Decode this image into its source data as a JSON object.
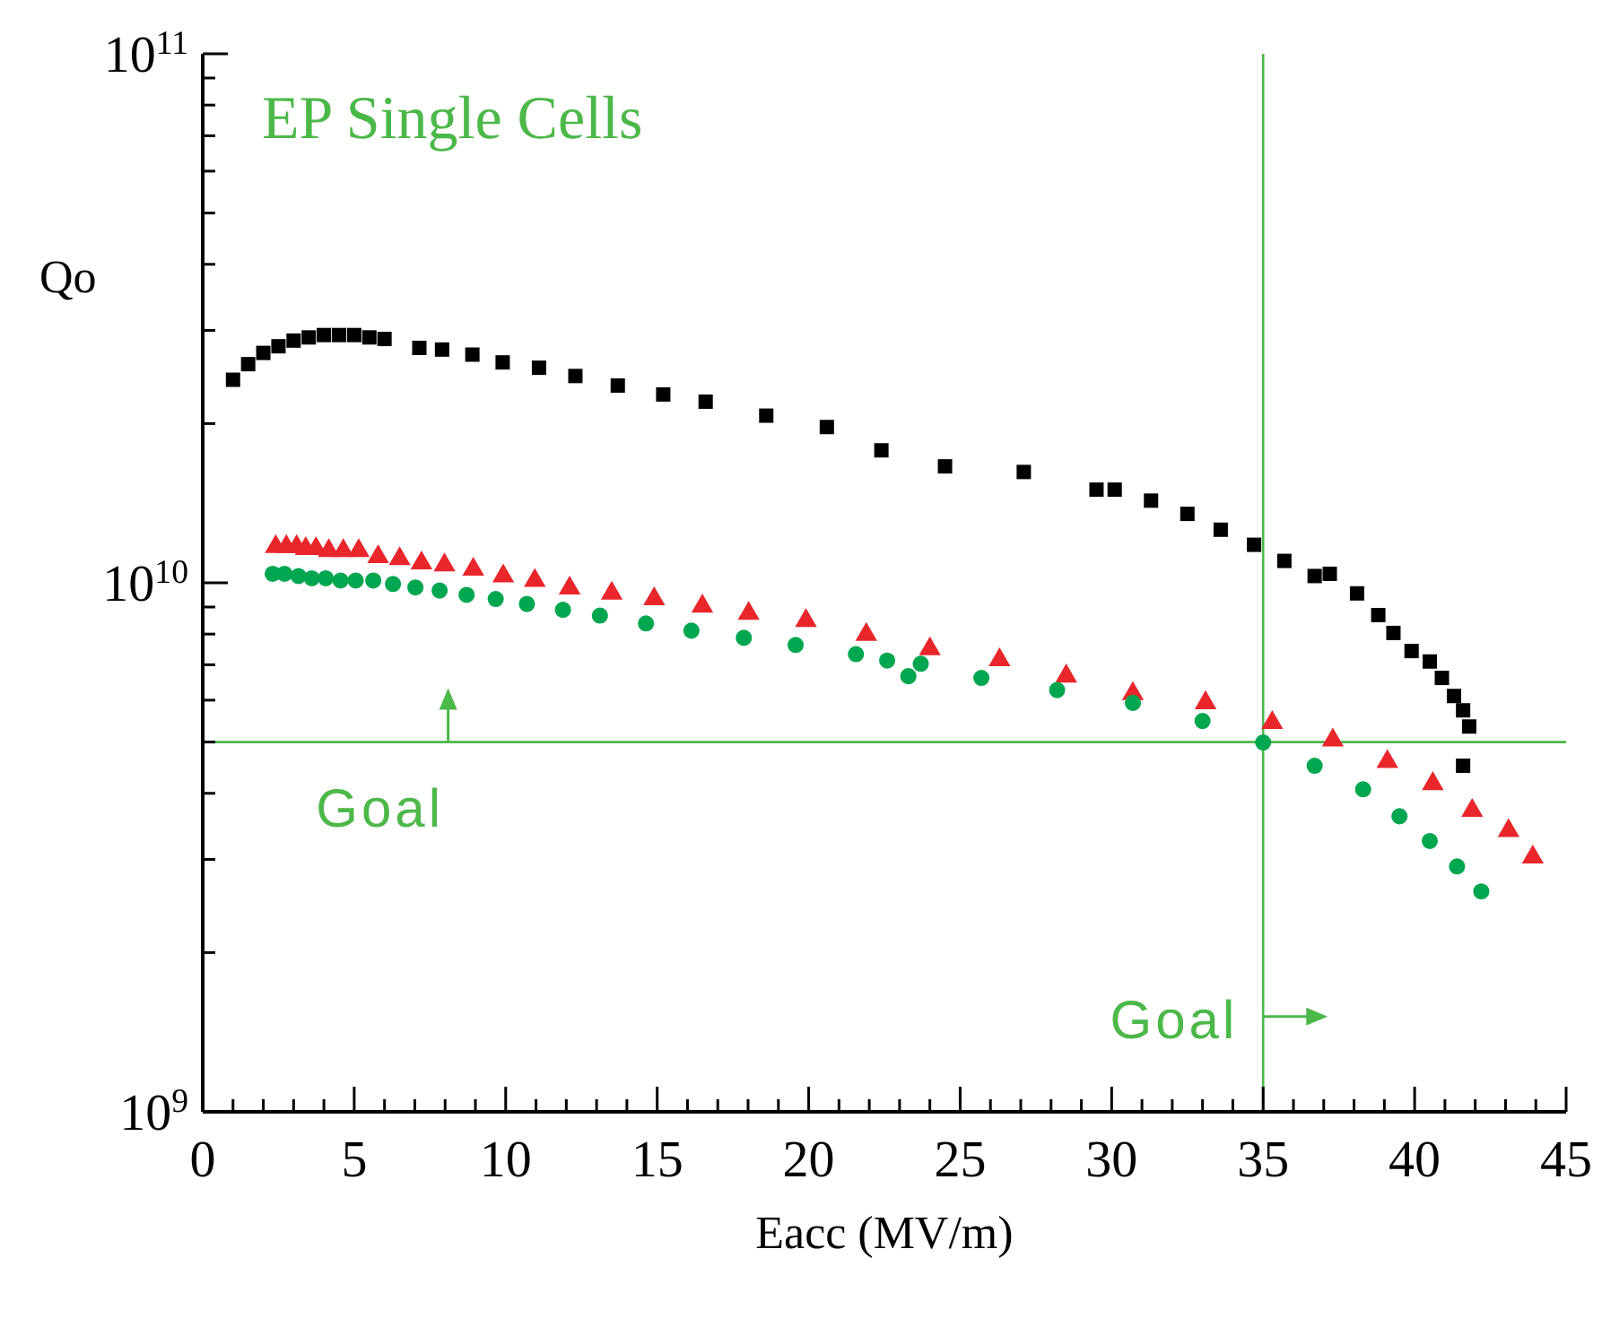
{
  "chart_data": {
    "type": "scatter",
    "title": "EP Single Cells",
    "xlabel": "Eacc (MV/m)",
    "ylabel": "Qo",
    "log": "y",
    "xlim": [
      0,
      45
    ],
    "ylim": [
      1000000000,
      100000000000
    ],
    "xticks": [
      0,
      {
        "value": 1,
        "label": null
      },
      {
        "value": 2,
        "label": null
      },
      {
        "value": 3,
        "label": null
      },
      {
        "value": 4,
        "label": null
      },
      5,
      {
        "value": 6,
        "label": null
      },
      {
        "value": 7,
        "label": null
      },
      {
        "value": 8,
        "label": null
      },
      {
        "value": 9,
        "label": null
      },
      10,
      {
        "value": 11,
        "label": null
      },
      {
        "value": 12,
        "label": null
      },
      {
        "value": 13,
        "label": null
      },
      {
        "value": 14,
        "label": null
      },
      15,
      {
        "value": 16,
        "label": null
      },
      {
        "value": 17,
        "label": null
      },
      {
        "value": 18,
        "label": null
      },
      {
        "value": 19,
        "label": null
      },
      20,
      {
        "value": 21,
        "label": null
      },
      {
        "value": 22,
        "label": null
      },
      {
        "value": 23,
        "label": null
      },
      {
        "value": 24,
        "label": null
      },
      25,
      {
        "value": 26,
        "label": null
      },
      {
        "value": 27,
        "label": null
      },
      {
        "value": 28,
        "label": null
      },
      {
        "value": 29,
        "label": null
      },
      30,
      {
        "value": 31,
        "label": null
      },
      {
        "value": 32,
        "label": null
      },
      {
        "value": 33,
        "label": null
      },
      {
        "value": 34,
        "label": null
      },
      35,
      {
        "value": 36,
        "label": null
      },
      {
        "value": 37,
        "label": null
      },
      {
        "value": 38,
        "label": null
      },
      {
        "value": 39,
        "label": null
      },
      40,
      {
        "value": 41,
        "label": null
      },
      {
        "value": 42,
        "label": null
      },
      {
        "value": 43,
        "label": null
      },
      {
        "value": 44,
        "label": null
      },
      45
    ],
    "yticks": [
      {
        "value": 1000000000,
        "label": "10$^{9}$"
      },
      {
        "value": 2000000000,
        "label": null
      },
      {
        "value": 3000000000,
        "label": null
      },
      {
        "value": 4000000000,
        "label": null
      },
      {
        "value": 5000000000,
        "label": null
      },
      {
        "value": 6000000000,
        "label": null
      },
      {
        "value": 7000000000,
        "label": null
      },
      {
        "value": 8000000000,
        "label": null
      },
      {
        "value": 9000000000,
        "label": null
      },
      {
        "value": 10000000000,
        "label": "10$^{10}$"
      },
      {
        "value": 20000000000,
        "label": null
      },
      {
        "value": 30000000000,
        "label": null
      },
      {
        "value": 40000000000,
        "label": null
      },
      {
        "value": 50000000000,
        "label": null
      },
      {
        "value": 60000000000,
        "label": null
      },
      {
        "value": 70000000000,
        "label": null
      },
      {
        "value": 80000000000,
        "label": null
      },
      {
        "value": 90000000000,
        "label": null
      },
      {
        "value": 100000000000,
        "label": "10$^{11}$"
      }
    ],
    "ref_lines": [
      {
        "axis": "y",
        "value": 5000000000,
        "label": "Goal",
        "color": "#4cb848"
      },
      {
        "axis": "x",
        "value": 35,
        "label": "Goal",
        "color": "#4cb848"
      }
    ],
    "series": [
      {
        "marker": "square",
        "color": "#000000",
        "x": [
          1.0,
          1.5,
          2.0,
          2.5,
          3.0,
          3.5,
          4.0,
          4.5,
          5.0,
          5.5,
          6.0,
          7.15,
          7.9,
          8.9,
          9.9,
          11.1,
          12.3,
          13.7,
          15.2,
          16.6,
          18.6,
          20.6,
          22.4,
          24.5,
          27.1,
          29.5,
          30.1,
          31.3,
          32.5,
          33.6,
          34.7,
          35.7,
          36.7,
          37.2,
          38.1,
          38.8,
          39.3,
          39.9,
          40.5,
          40.9,
          41.3,
          41.6,
          41.8,
          41.6
        ],
        "values": [
          24200000000.0,
          25900000000.0,
          27200000000.0,
          28000000000.0,
          28700000000.0,
          29100000000.0,
          29400000000.0,
          29400000000.0,
          29400000000.0,
          29100000000.0,
          28900000000.0,
          27800000000.0,
          27600000000.0,
          27000000000.0,
          26100000000.0,
          25500000000.0,
          24600000000.0,
          23600000000.0,
          22700000000.0,
          22000000000.0,
          20700000000.0,
          19700000000.0,
          17800000000.0,
          16600000000.0,
          16200000000.0,
          15000000000.0,
          15000000000.0,
          14300000000.0,
          13500000000.0,
          12600000000.0,
          11800000000.0,
          11000000000.0,
          10300000000.0,
          10400000000.0,
          9550000000.0,
          8690000000.0,
          8040000000.0,
          7430000000.0,
          7100000000.0,
          6610000000.0,
          6110000000.0,
          5740000000.0,
          5350000000.0,
          4510000000.0
        ]
      },
      {
        "marker": "triangle",
        "color": "#e8262b",
        "x": [
          2.41,
          2.76,
          3.1,
          3.4,
          3.74,
          4.16,
          4.64,
          5.15,
          5.79,
          6.5,
          7.22,
          7.98,
          8.93,
          9.92,
          10.96,
          12.11,
          13.5,
          14.9,
          16.49,
          18.02,
          19.91,
          21.9,
          24.0,
          26.3,
          28.5,
          30.7,
          33.1,
          35.3,
          37.3,
          39.1,
          40.6,
          41.9,
          43.1,
          43.9
        ],
        "values": [
          11700000000.0,
          11700000000.0,
          11700000000.0,
          11600000000.0,
          11600000000.0,
          11500000000.0,
          11500000000.0,
          11500000000.0,
          11200000000.0,
          11100000000.0,
          10900000000.0,
          10800000000.0,
          10600000000.0,
          10300000000.0,
          10100000000.0,
          9770000000.0,
          9550000000.0,
          9320000000.0,
          9030000000.0,
          8750000000.0,
          8480000000.0,
          7980000000.0,
          7500000000.0,
          7150000000.0,
          6660000000.0,
          6170000000.0,
          5930000000.0,
          5440000000.0,
          5040000000.0,
          4590000000.0,
          4170000000.0,
          3710000000.0,
          3400000000.0,
          3030000000.0
        ]
      },
      {
        "marker": "circle",
        "color": "#00a650",
        "x": [
          2.31,
          2.7,
          3.16,
          3.6,
          4.06,
          4.55,
          5.05,
          5.63,
          6.28,
          7.02,
          7.82,
          8.71,
          9.67,
          10.7,
          11.89,
          13.11,
          14.63,
          16.13,
          17.86,
          19.57,
          21.56,
          22.59,
          23.29,
          23.7,
          25.7,
          28.2,
          30.7,
          33.0,
          35.0,
          36.7,
          38.3,
          39.5,
          40.5,
          41.4,
          42.2
        ],
        "values": [
          10400000000.0,
          10400000000.0,
          10300000000.0,
          10200000000.0,
          10200000000.0,
          10100000000.0,
          10100000000.0,
          10100000000.0,
          9950000000.0,
          9800000000.0,
          9670000000.0,
          9490000000.0,
          9320000000.0,
          9120000000.0,
          8890000000.0,
          8670000000.0,
          8380000000.0,
          8120000000.0,
          7870000000.0,
          7630000000.0,
          7330000000.0,
          7130000000.0,
          6660000000.0,
          7030000000.0,
          6610000000.0,
          6270000000.0,
          5930000000.0,
          5480000000.0,
          4990000000.0,
          4510000000.0,
          4070000000.0,
          3620000000.0,
          3250000000.0,
          2910000000.0,
          2610000000.0
        ]
      }
    ]
  }
}
